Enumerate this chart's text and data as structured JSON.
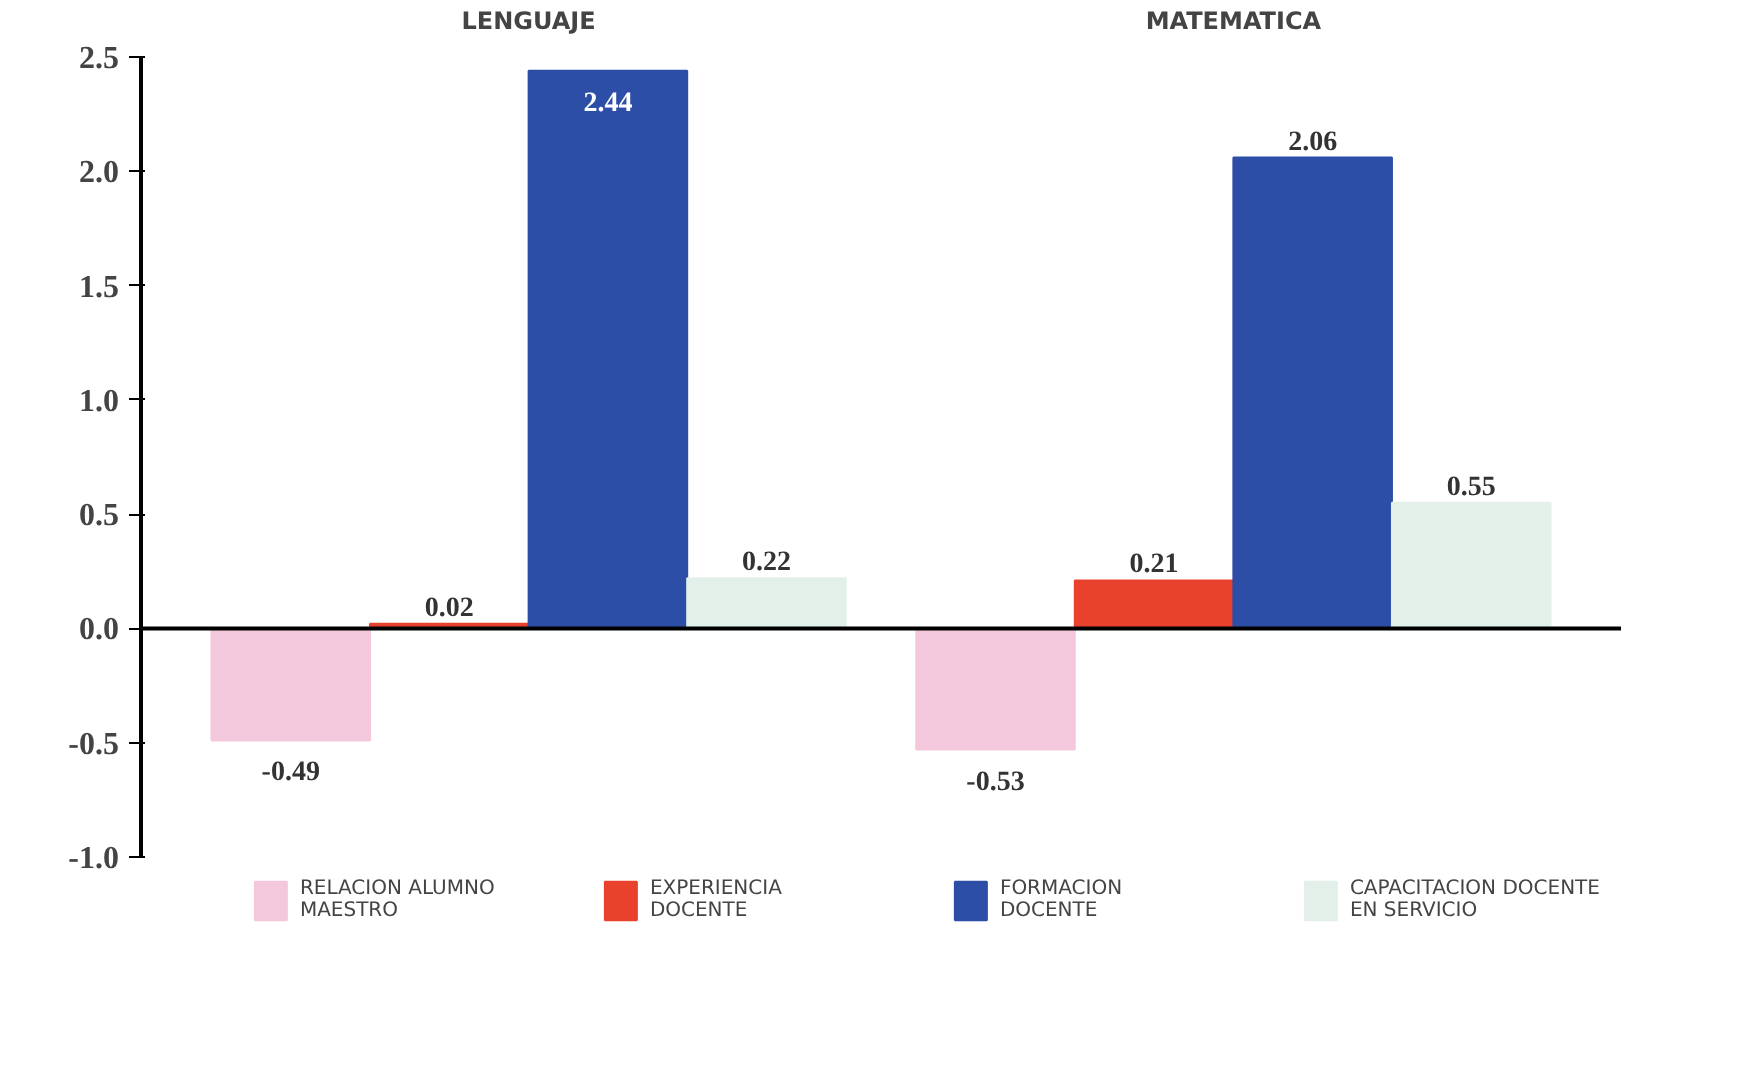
{
  "chart_data": {
    "type": "bar",
    "categories": [
      "LENGUAJE",
      "MATEMATICA"
    ],
    "series": [
      {
        "name": "RELACION ALUMNO MAESTRO",
        "color": "#f4c8dc",
        "values": [
          -0.49,
          -0.53
        ]
      },
      {
        "name": "EXPERIENCIA DOCENTE",
        "color": "#e8412c",
        "values": [
          0.02,
          0.21
        ]
      },
      {
        "name": "FORMACION DOCENTE",
        "color": "#2d4ea6",
        "values": [
          2.44,
          2.06
        ]
      },
      {
        "name": "CAPACITACION DOCENTE EN SERVICIO",
        "color": "#e3f0ea",
        "values": [
          0.22,
          0.55
        ]
      }
    ],
    "ylim": [
      -1.0,
      2.5
    ],
    "yticks": [
      {
        "value": -1.0,
        "label": "-1.0"
      },
      -0.5,
      {
        "value": 0.0,
        "label": "0.0"
      },
      0.5,
      {
        "value": 1.0,
        "label": "1.0"
      },
      1.5,
      {
        "value": 2.0,
        "label": "2.0"
      },
      2.5
    ],
    "ref_lines": [
      {
        "axis": "y",
        "value": 0,
        "color": "#000000"
      }
    ],
    "data_labels": true,
    "grid": false,
    "legend": "bottom"
  }
}
